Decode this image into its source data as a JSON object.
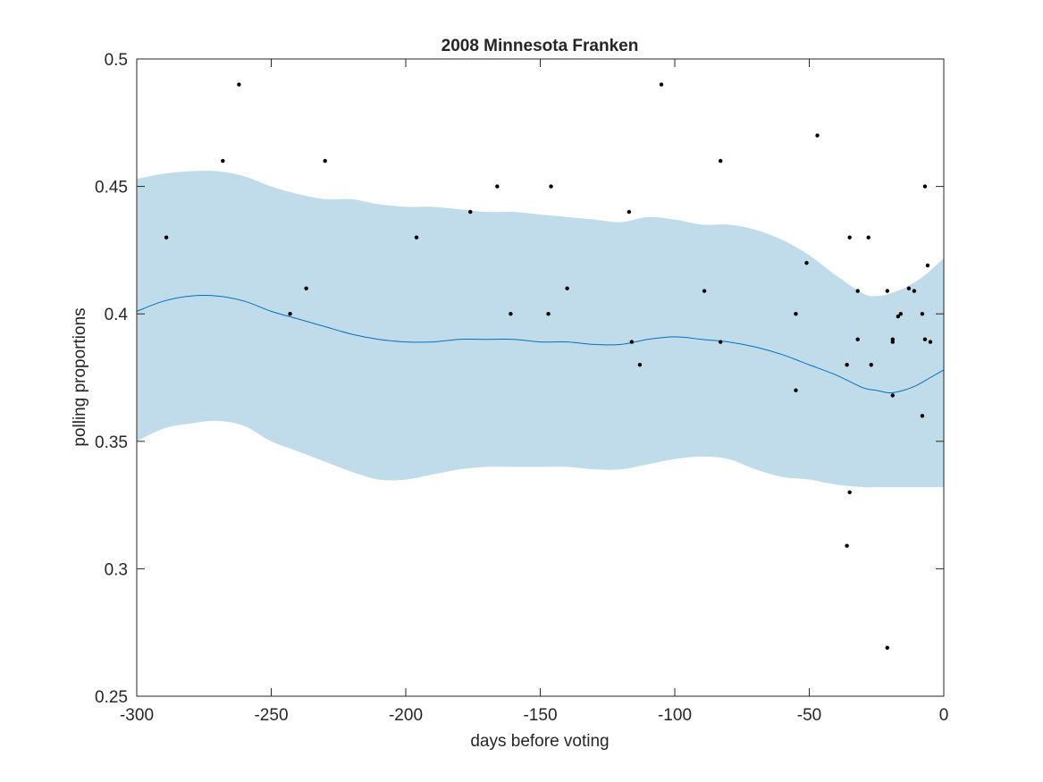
{
  "colors": {
    "band": "#c0dcea",
    "mean_line": "#0072bd",
    "points": "#000000",
    "axes": "#262626",
    "background": "#ffffff"
  },
  "chart_data": {
    "type": "scatter",
    "title": "2008 Minnesota Franken",
    "xlabel": "days before voting",
    "ylabel": "polling proportions",
    "xlim": [
      -300,
      0
    ],
    "ylim": [
      0.25,
      0.5
    ],
    "x_ticks": [
      -300,
      -250,
      -200,
      -150,
      -100,
      -50,
      0
    ],
    "x_tick_labels": [
      "-300",
      "-250",
      "-200",
      "-150",
      "-100",
      "-50",
      "0"
    ],
    "y_ticks": [
      0.25,
      0.3,
      0.35,
      0.4,
      0.45,
      0.5
    ],
    "y_tick_labels": [
      "0.25",
      "0.3",
      "0.35",
      "0.4",
      "0.45",
      "0.5"
    ],
    "grid": false,
    "series": [
      {
        "type": "area",
        "color": "#c0dcea",
        "x": [
          -300,
          -290,
          -280,
          -270,
          -260,
          -250,
          -240,
          -230,
          -220,
          -210,
          -200,
          -190,
          -180,
          -170,
          -160,
          -150,
          -140,
          -130,
          -120,
          -110,
          -100,
          -90,
          -80,
          -70,
          -60,
          -50,
          -40,
          -30,
          -25,
          -20,
          -15,
          -10,
          -5,
          0
        ],
        "upper": [
          0.453,
          0.455,
          0.456,
          0.456,
          0.454,
          0.45,
          0.447,
          0.445,
          0.445,
          0.443,
          0.442,
          0.442,
          0.441,
          0.44,
          0.44,
          0.439,
          0.438,
          0.437,
          0.436,
          0.438,
          0.437,
          0.435,
          0.435,
          0.433,
          0.429,
          0.423,
          0.415,
          0.408,
          0.407,
          0.408,
          0.41,
          0.413,
          0.417,
          0.422
        ],
        "lower": [
          0.35,
          0.355,
          0.357,
          0.358,
          0.356,
          0.35,
          0.346,
          0.342,
          0.338,
          0.335,
          0.335,
          0.337,
          0.339,
          0.34,
          0.34,
          0.34,
          0.34,
          0.339,
          0.339,
          0.341,
          0.343,
          0.344,
          0.343,
          0.339,
          0.336,
          0.335,
          0.333,
          0.332,
          0.332,
          0.332,
          0.332,
          0.332,
          0.332,
          0.332
        ]
      },
      {
        "type": "line",
        "color": "#0072bd",
        "x": [
          -300,
          -290,
          -280,
          -270,
          -260,
          -250,
          -240,
          -230,
          -220,
          -210,
          -200,
          -190,
          -180,
          -170,
          -160,
          -150,
          -140,
          -130,
          -120,
          -110,
          -100,
          -90,
          -80,
          -70,
          -60,
          -50,
          -40,
          -30,
          -25,
          -20,
          -15,
          -10,
          -5,
          0
        ],
        "y": [
          0.401,
          0.405,
          0.407,
          0.407,
          0.405,
          0.401,
          0.398,
          0.395,
          0.392,
          0.39,
          0.389,
          0.389,
          0.39,
          0.39,
          0.39,
          0.389,
          0.389,
          0.388,
          0.388,
          0.39,
          0.391,
          0.39,
          0.389,
          0.387,
          0.384,
          0.38,
          0.376,
          0.371,
          0.37,
          0.369,
          0.37,
          0.372,
          0.375,
          0.378
        ]
      },
      {
        "type": "scatter",
        "color": "#000000",
        "points": [
          [
            -289,
            0.43
          ],
          [
            -268,
            0.46
          ],
          [
            -262,
            0.49
          ],
          [
            -243,
            0.4
          ],
          [
            -237,
            0.41
          ],
          [
            -230,
            0.46
          ],
          [
            -196,
            0.43
          ],
          [
            -176,
            0.44
          ],
          [
            -166,
            0.45
          ],
          [
            -161,
            0.4
          ],
          [
            -147,
            0.4
          ],
          [
            -146,
            0.45
          ],
          [
            -140,
            0.41
          ],
          [
            -117,
            0.44
          ],
          [
            -116,
            0.389
          ],
          [
            -113,
            0.38
          ],
          [
            -105,
            0.49
          ],
          [
            -89,
            0.409
          ],
          [
            -83,
            0.389
          ],
          [
            -83,
            0.46
          ],
          [
            -55,
            0.4
          ],
          [
            -55,
            0.37
          ],
          [
            -51,
            0.42
          ],
          [
            -47,
            0.47
          ],
          [
            -36,
            0.38
          ],
          [
            -36,
            0.309
          ],
          [
            -35,
            0.43
          ],
          [
            -35,
            0.33
          ],
          [
            -32,
            0.409
          ],
          [
            -32,
            0.39
          ],
          [
            -28,
            0.43
          ],
          [
            -27,
            0.38
          ],
          [
            -21,
            0.409
          ],
          [
            -21,
            0.269
          ],
          [
            -19,
            0.39
          ],
          [
            -19,
            0.389
          ],
          [
            -19,
            0.368
          ],
          [
            -17,
            0.399
          ],
          [
            -16,
            0.4
          ],
          [
            -13,
            0.41
          ],
          [
            -11,
            0.409
          ],
          [
            -8,
            0.4
          ],
          [
            -8,
            0.36
          ],
          [
            -7,
            0.45
          ],
          [
            -7,
            0.39
          ],
          [
            -6,
            0.419
          ],
          [
            -5,
            0.389
          ]
        ]
      }
    ]
  }
}
